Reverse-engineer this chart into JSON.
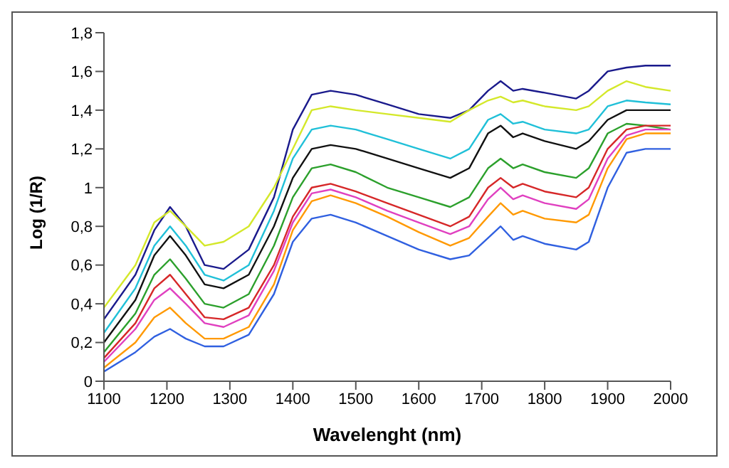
{
  "chart_data": {
    "type": "line",
    "xlabel": "Wavelenght (nm)",
    "ylabel": "Log (1/R)",
    "x": [
      1100,
      1150,
      1180,
      1205,
      1230,
      1260,
      1290,
      1330,
      1370,
      1400,
      1430,
      1460,
      1500,
      1550,
      1600,
      1650,
      1680,
      1710,
      1730,
      1750,
      1765,
      1800,
      1850,
      1870,
      1900,
      1930,
      1960,
      2000
    ],
    "series": [
      {
        "color": "#1a1a8c",
        "values": [
          0.32,
          0.55,
          0.78,
          0.9,
          0.8,
          0.6,
          0.58,
          0.68,
          0.95,
          1.3,
          1.48,
          1.5,
          1.48,
          1.43,
          1.38,
          1.36,
          1.4,
          1.5,
          1.55,
          1.5,
          1.51,
          1.49,
          1.46,
          1.5,
          1.6,
          1.62,
          1.63,
          1.63
        ]
      },
      {
        "color": "#d4e82a",
        "values": [
          0.38,
          0.6,
          0.82,
          0.88,
          0.8,
          0.7,
          0.72,
          0.8,
          1.0,
          1.2,
          1.4,
          1.42,
          1.4,
          1.38,
          1.36,
          1.34,
          1.4,
          1.45,
          1.47,
          1.44,
          1.45,
          1.42,
          1.4,
          1.42,
          1.5,
          1.55,
          1.52,
          1.5
        ]
      },
      {
        "color": "#20c0d8",
        "values": [
          0.25,
          0.48,
          0.7,
          0.8,
          0.7,
          0.55,
          0.52,
          0.6,
          0.88,
          1.15,
          1.3,
          1.32,
          1.3,
          1.25,
          1.2,
          1.15,
          1.2,
          1.35,
          1.38,
          1.33,
          1.34,
          1.3,
          1.28,
          1.3,
          1.42,
          1.45,
          1.44,
          1.43
        ]
      },
      {
        "color": "#111111",
        "values": [
          0.2,
          0.42,
          0.65,
          0.75,
          0.65,
          0.5,
          0.48,
          0.55,
          0.8,
          1.05,
          1.2,
          1.22,
          1.2,
          1.15,
          1.1,
          1.05,
          1.1,
          1.28,
          1.32,
          1.26,
          1.28,
          1.24,
          1.2,
          1.24,
          1.35,
          1.4,
          1.4,
          1.4
        ]
      },
      {
        "color": "#2ca02c",
        "values": [
          0.15,
          0.35,
          0.55,
          0.63,
          0.53,
          0.4,
          0.38,
          0.45,
          0.7,
          0.95,
          1.1,
          1.12,
          1.08,
          1.0,
          0.95,
          0.9,
          0.95,
          1.1,
          1.15,
          1.1,
          1.12,
          1.08,
          1.05,
          1.1,
          1.28,
          1.33,
          1.32,
          1.3
        ]
      },
      {
        "color": "#d62728",
        "values": [
          0.12,
          0.3,
          0.48,
          0.55,
          0.45,
          0.33,
          0.32,
          0.38,
          0.6,
          0.85,
          1.0,
          1.02,
          0.98,
          0.92,
          0.86,
          0.8,
          0.85,
          1.0,
          1.05,
          1.0,
          1.02,
          0.98,
          0.95,
          1.0,
          1.2,
          1.3,
          1.32,
          1.32
        ]
      },
      {
        "color": "#e040c0",
        "values": [
          0.1,
          0.27,
          0.42,
          0.48,
          0.4,
          0.3,
          0.28,
          0.34,
          0.57,
          0.82,
          0.97,
          0.99,
          0.95,
          0.88,
          0.82,
          0.76,
          0.8,
          0.94,
          1.0,
          0.94,
          0.96,
          0.92,
          0.89,
          0.94,
          1.15,
          1.27,
          1.3,
          1.3
        ]
      },
      {
        "color": "#ff9900",
        "values": [
          0.07,
          0.2,
          0.33,
          0.38,
          0.3,
          0.22,
          0.22,
          0.28,
          0.5,
          0.78,
          0.93,
          0.96,
          0.92,
          0.85,
          0.77,
          0.7,
          0.74,
          0.85,
          0.92,
          0.86,
          0.88,
          0.84,
          0.82,
          0.86,
          1.1,
          1.25,
          1.28,
          1.28
        ]
      },
      {
        "color": "#3060e0",
        "values": [
          0.05,
          0.15,
          0.23,
          0.27,
          0.22,
          0.18,
          0.18,
          0.24,
          0.45,
          0.72,
          0.84,
          0.86,
          0.82,
          0.75,
          0.68,
          0.63,
          0.65,
          0.74,
          0.8,
          0.73,
          0.75,
          0.71,
          0.68,
          0.72,
          1.0,
          1.18,
          1.2,
          1.2
        ]
      }
    ],
    "xlim": [
      1100,
      2000
    ],
    "xticks": [
      1100,
      1200,
      1300,
      1400,
      1500,
      1600,
      1700,
      1800,
      1900,
      2000
    ],
    "ylim": [
      0,
      1.8
    ],
    "yticks": [
      0,
      {
        "value": 0.2,
        "label": "0,2"
      },
      {
        "value": 0.4,
        "label": "0,4"
      },
      {
        "value": 0.6,
        "label": "0,6"
      },
      {
        "value": 0.8,
        "label": "0,8"
      },
      1,
      {
        "value": 1.2,
        "label": "1,2"
      },
      {
        "value": 1.4,
        "label": "1,4"
      },
      {
        "value": 1.6,
        "label": "1,6"
      },
      {
        "value": 1.8,
        "label": "1,8"
      }
    ],
    "grid": false,
    "marker": "none",
    "line_style": "solid"
  }
}
